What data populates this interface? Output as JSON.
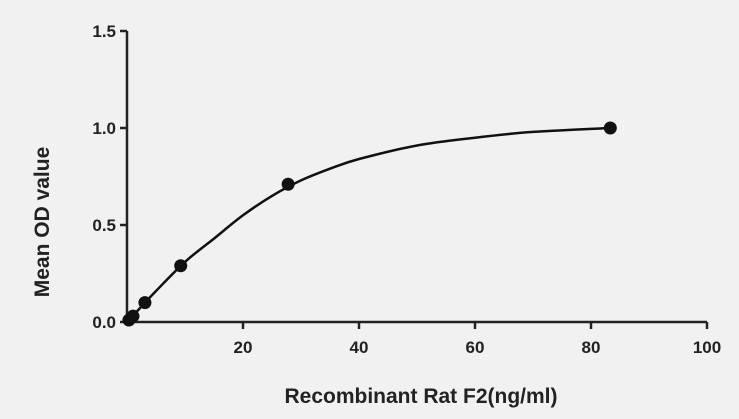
{
  "chart_data": {
    "type": "scatter",
    "xlabel": "Recombinant Rat F2(ng/ml)",
    "ylabel": "Mean OD value",
    "xlim": [
      0,
      100
    ],
    "ylim": [
      0,
      1.5
    ],
    "x_ticks": [
      {
        "value": 20,
        "label": "20"
      },
      {
        "value": 40,
        "label": "40"
      },
      {
        "value": 60,
        "label": "60"
      },
      {
        "value": 80,
        "label": "80"
      },
      {
        "value": 100,
        "label": "100"
      }
    ],
    "y_ticks": [
      {
        "value": 0,
        "label": "0.0"
      },
      {
        "value": 0.5,
        "label": "0.5"
      },
      {
        "value": 1.0,
        "label": "1.0"
      },
      {
        "value": 1.5,
        "label": "1.5"
      }
    ],
    "grid": false,
    "legend": "none",
    "series": [
      {
        "x": [
          0.33,
          1.03,
          3.09,
          9.26,
          27.78,
          83.33
        ],
        "y": [
          0.01,
          0.03,
          0.1,
          0.29,
          0.71,
          1.0
        ]
      }
    ],
    "fit_curve": {
      "x": [
        0,
        2.5,
        5,
        10,
        15,
        20,
        25,
        30,
        35,
        40,
        50,
        60,
        70,
        83.33
      ],
      "y": [
        0.0,
        0.08,
        0.16,
        0.31,
        0.43,
        0.55,
        0.65,
        0.73,
        0.79,
        0.84,
        0.91,
        0.95,
        0.98,
        1.0
      ]
    },
    "colors": {
      "background": "#f1f1f1",
      "axis": "#222222",
      "marker": "#111111",
      "curve": "#111111"
    }
  }
}
